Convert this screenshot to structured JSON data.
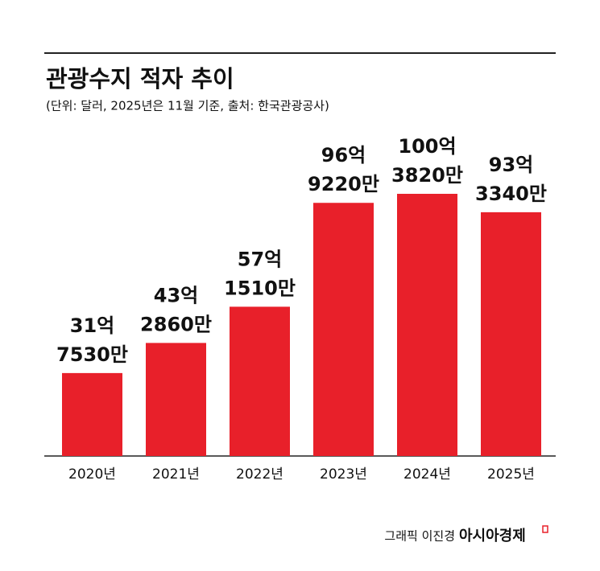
{
  "chart_data": {
    "type": "bar",
    "title": "관광수지 적자 추이",
    "subtitle": "(단위: 달러, 2025년은 11월 기준, 출처: 한국관광공사)",
    "categories": [
      "2020년",
      "2021년",
      "2022년",
      "2023년",
      "2024년",
      "2025년"
    ],
    "values": [
      3175300000,
      4328600000,
      5715100000,
      9692200000,
      10038200000,
      9333400000
    ],
    "value_labels": [
      [
        "31억",
        "7530만"
      ],
      [
        "43억",
        "2860만"
      ],
      [
        "57억",
        "1510만"
      ],
      [
        "96억",
        "9220만"
      ],
      [
        "100억",
        "3820만"
      ],
      [
        "93억",
        "3340만"
      ]
    ],
    "color": "#e8202a"
  },
  "footer": {
    "credit": "그래픽 이진경",
    "brand": "아시아경제"
  }
}
